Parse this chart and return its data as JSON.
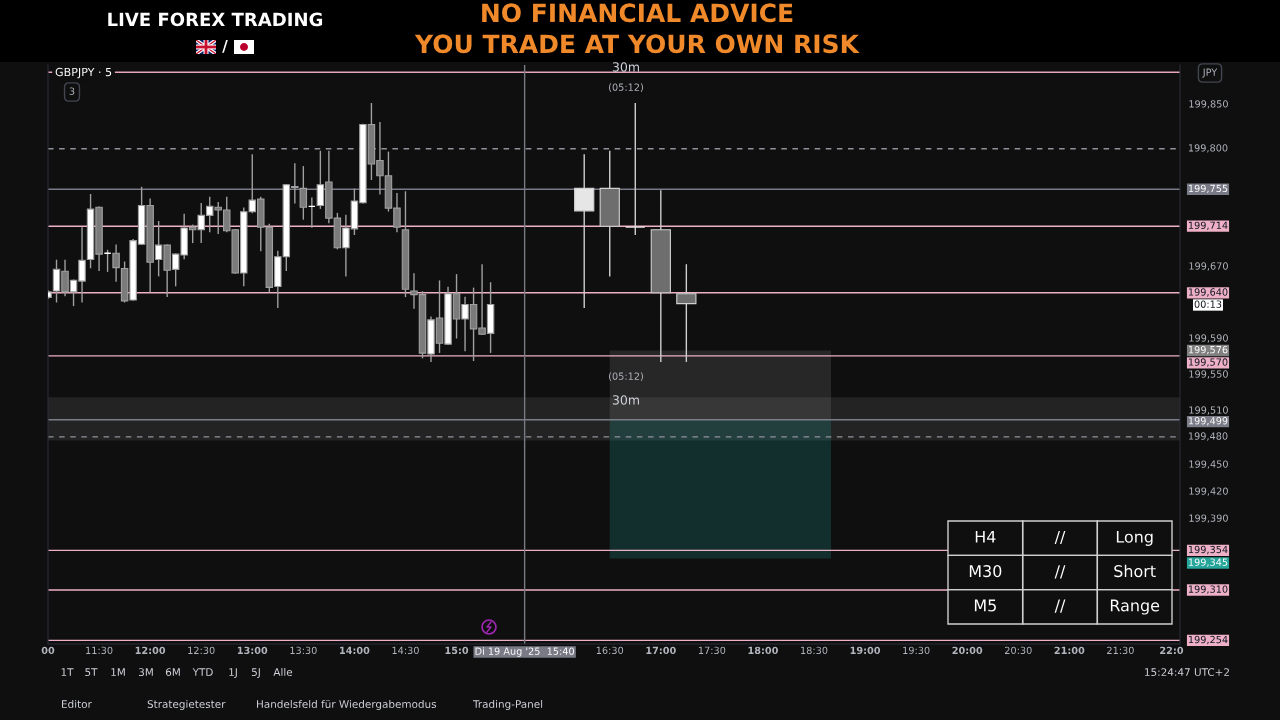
{
  "chart_data": [
    {
      "type": "candlestick",
      "title": "LIVE FOREX TRADING",
      "subtitle": "NO FINANCIAL ADVICE\nYOU TRADE AT YOUR OWN RISK",
      "ylabel": "JPY",
      "xlim": [
        "2025-08-19T11:00",
        "2025-08-19T22:05"
      ],
      "ylim": [
        199250,
        199893
      ],
      "xticks": [
        {
          "value": "2025-08-19T11:00",
          "label": "00"
        },
        {
          "value": "2025-08-19T11:30",
          "label": "11:30"
        },
        {
          "value": "2025-08-19T12:00",
          "label": "12:00"
        },
        {
          "value": "2025-08-19T12:30",
          "label": "12:30"
        },
        {
          "value": "2025-08-19T13:00",
          "label": "13:00"
        },
        {
          "value": "2025-08-19T13:30",
          "label": "13:30"
        },
        {
          "value": "2025-08-19T14:00",
          "label": "14:00"
        },
        {
          "value": "2025-08-19T14:30",
          "label": "14:30"
        },
        {
          "value": "2025-08-19T15:00",
          "label": "15:0"
        },
        {
          "value": "2025-08-19T16:30",
          "label": "16:30"
        },
        {
          "value": "2025-08-19T17:00",
          "label": "17:00"
        },
        {
          "value": "2025-08-19T17:30",
          "label": "17:30"
        },
        {
          "value": "2025-08-19T18:00",
          "label": "18:00"
        },
        {
          "value": "2025-08-19T18:30",
          "label": "18:30"
        },
        {
          "value": "2025-08-19T19:00",
          "label": "19:00"
        },
        {
          "value": "2025-08-19T19:30",
          "label": "19:30"
        },
        {
          "value": "2025-08-19T20:00",
          "label": "20:00"
        },
        {
          "value": "2025-08-19T20:30",
          "label": "20:30"
        },
        {
          "value": "2025-08-19T21:00",
          "label": "21:00"
        },
        {
          "value": "2025-08-19T21:30",
          "label": "21:30"
        },
        {
          "value": "2025-08-19T22:00",
          "label": "22:0"
        }
      ],
      "yticks": [
        {
          "value": 199850,
          "label": "199,850"
        },
        {
          "value": 199670,
          "label": "199,670"
        },
        {
          "value": 199590,
          "label": "199,590"
        },
        {
          "value": 199550,
          "label": "199,550"
        },
        {
          "value": 199510,
          "label": "199,510"
        },
        {
          "value": 199450,
          "label": "199,450"
        },
        {
          "value": 199420,
          "label": "199,420"
        },
        {
          "value": 199390,
          "label": "199,390"
        }
      ],
      "series": [
        {
          "type": "candlestick",
          "color": "#a0a0a0",
          "x": [
            "2025-08-19T11:00",
            "2025-08-19T11:05",
            "2025-08-19T11:10",
            "2025-08-19T11:15",
            "2025-08-19T11:20",
            "2025-08-19T11:25",
            "2025-08-19T11:30",
            "2025-08-19T11:35",
            "2025-08-19T11:40",
            "2025-08-19T11:45",
            "2025-08-19T11:50",
            "2025-08-19T11:55",
            "2025-08-19T12:00",
            "2025-08-19T12:05",
            "2025-08-19T12:10",
            "2025-08-19T12:15",
            "2025-08-19T12:20",
            "2025-08-19T12:25",
            "2025-08-19T12:30",
            "2025-08-19T12:35",
            "2025-08-19T12:40",
            "2025-08-19T12:45",
            "2025-08-19T12:50",
            "2025-08-19T12:55",
            "2025-08-19T13:00",
            "2025-08-19T13:05",
            "2025-08-19T13:10",
            "2025-08-19T13:15",
            "2025-08-19T13:20",
            "2025-08-19T13:25",
            "2025-08-19T13:30",
            "2025-08-19T13:35",
            "2025-08-19T13:40",
            "2025-08-19T13:45",
            "2025-08-19T13:50",
            "2025-08-19T13:55",
            "2025-08-19T14:00",
            "2025-08-19T14:05",
            "2025-08-19T14:10",
            "2025-08-19T14:15",
            "2025-08-19T14:20",
            "2025-08-19T14:25",
            "2025-08-19T14:30",
            "2025-08-19T14:35",
            "2025-08-19T14:40",
            "2025-08-19T14:45",
            "2025-08-19T14:50",
            "2025-08-19T14:55",
            "2025-08-19T15:00",
            "2025-08-19T15:05",
            "2025-08-19T15:10",
            "2025-08-19T15:15",
            "2025-08-19T15:20"
          ],
          "ohlc": [
            [
              199635,
              199642,
              199634,
              199641
            ],
            [
              199642,
              199676,
              199630,
              199666
            ],
            [
              199664,
              199676,
              199637,
              199641
            ],
            [
              199641,
              199654,
              199626,
              199654
            ],
            [
              199653,
              199712,
              199630,
              199676
            ],
            [
              199677,
              199749,
              199668,
              199733
            ],
            [
              199735,
              199735,
              199665,
              199683
            ],
            [
              199684,
              199687,
              199664,
              199684
            ],
            [
              199684,
              199693,
              199653,
              199668
            ],
            [
              199667,
              199674,
              199630,
              199631
            ],
            [
              199632,
              199699,
              199632,
              199698
            ],
            [
              199694,
              199757,
              199694,
              199737
            ],
            [
              199737,
              199744,
              199641,
              199674
            ],
            [
              199677,
              199719,
              199659,
              199693
            ],
            [
              199693,
              199693,
              199636,
              199665
            ],
            [
              199666,
              199683,
              199648,
              199683
            ],
            [
              199682,
              199727,
              199678,
              199712
            ],
            [
              199713,
              199715,
              199696,
              199710
            ],
            [
              199710,
              199739,
              199696,
              199726
            ],
            [
              199726,
              199746,
              199708,
              199736
            ],
            [
              199735,
              199740,
              199706,
              199732
            ],
            [
              199732,
              199746,
              199708,
              199709
            ],
            [
              199710,
              199710,
              199662,
              199662
            ],
            [
              199662,
              199734,
              199648,
              199730
            ],
            [
              199730,
              199793,
              199729,
              199743
            ],
            [
              199744,
              199746,
              199687,
              199713
            ],
            [
              199713,
              199716,
              199641,
              199646
            ],
            [
              199647,
              199686,
              199624,
              199680
            ],
            [
              199680,
              199760,
              199665,
              199760
            ],
            [
              199758,
              199783,
              199740,
              199757
            ],
            [
              199756,
              199780,
              199722,
              199735
            ],
            [
              199736,
              199745,
              199713,
              199736
            ],
            [
              199737,
              199797,
              199734,
              199760
            ],
            [
              199763,
              199797,
              199718,
              199723
            ],
            [
              199723,
              199728,
              199689,
              199690
            ],
            [
              199690,
              199726,
              199659,
              199712
            ],
            [
              199711,
              199755,
              199705,
              199742
            ],
            [
              199740,
              199827,
              199740,
              199827
            ],
            [
              199827,
              199850,
              199766,
              199783
            ],
            [
              199787,
              199829,
              199750,
              199770
            ],
            [
              199770,
              199796,
              199731,
              199734
            ],
            [
              199734,
              199750,
              199708,
              199713
            ],
            [
              199710,
              199752,
              199636,
              199644
            ],
            [
              199642,
              199661,
              199623,
              199638
            ],
            [
              199638,
              199641,
              199568,
              199573
            ],
            [
              199572,
              199613,
              199564,
              199610
            ],
            [
              199612,
              199653,
              199574,
              199584
            ],
            [
              199583,
              199646,
              199583,
              199639
            ],
            [
              199639,
              199660,
              199590,
              199611
            ],
            [
              199611,
              199635,
              199576,
              199627
            ],
            [
              199627,
              199645,
              199565,
              199600
            ],
            [
              199601,
              199671,
              199594,
              199594
            ],
            [
              199595,
              199651,
              199574,
              199627
            ]
          ],
          "colors": [
            "#ffffff",
            "#ffffff",
            "#7b7b7b",
            "#ffffff",
            "#ffffff",
            "#ffffff",
            "#7b7b7b",
            "#ffffff",
            "#7b7b7b",
            "#7b7b7b",
            "#ffffff",
            "#ffffff",
            "#7b7b7b",
            "#ffffff",
            "#7b7b7b",
            "#ffffff",
            "#ffffff",
            "#7b7b7b",
            "#ffffff",
            "#ffffff",
            "#7b7b7b",
            "#7b7b7b",
            "#7b7b7b",
            "#ffffff",
            "#ffffff",
            "#7b7b7b",
            "#7b7b7b",
            "#ffffff",
            "#ffffff",
            "#7b7b7b",
            "#7b7b7b",
            "#ffffff",
            "#ffffff",
            "#7b7b7b",
            "#7b7b7b",
            "#ffffff",
            "#ffffff",
            "#ffffff",
            "#7b7b7b",
            "#7b7b7b",
            "#7b7b7b",
            "#7b7b7b",
            "#7b7b7b",
            "#7b7b7b",
            "#7b7b7b",
            "#ffffff",
            "#7b7b7b",
            "#ffffff",
            "#7b7b7b",
            "#ffffff",
            "#7b7b7b",
            "#7b7b7b",
            "#ffffff"
          ]
        },
        {
          "type": "candlestick",
          "color": "#d0d0d0",
          "x": [
            "2025-08-19T16:15",
            "2025-08-19T16:30",
            "2025-08-19T16:45",
            "2025-08-19T17:00",
            "2025-08-19T17:15"
          ],
          "ohlc": [
            [
              199731,
              199793,
              199624,
              199756
            ],
            [
              199756,
              199797,
              199659,
              199714
            ],
            [
              199713,
              199850,
              199705,
              199713
            ],
            [
              199710,
              199753,
              199564,
              199640
            ],
            [
              199639,
              199671,
              199564,
              199628
            ]
          ],
          "colors": [
            "#e6e6e6",
            "#6e6e6e",
            "#e6e6e6",
            "#6e6e6e",
            "#6e6e6e"
          ]
        },
        {
          "type": "line",
          "color": "#808080",
          "x": [
            "2025-08-19T16:30",
            "2025-08-19T18:40"
          ],
          "values": [
            null,
            null
          ],
          "lower": [
            199499,
            199499
          ],
          "upper": [
            199576,
            199576
          ]
        },
        {
          "type": "line",
          "color": "#26a69a",
          "x": [
            "2025-08-19T16:30",
            "2025-08-19T18:40"
          ],
          "values": [
            null,
            null
          ],
          "lower": [
            199345,
            199345
          ],
          "upper": [
            199499,
            199499
          ]
        }
      ],
      "ref_lines": [
        {
          "axis": "y",
          "value": 199885,
          "color": "#e8a3bd"
        },
        {
          "axis": "y",
          "value": 199800,
          "label": "199,800",
          "color": "#8f929b",
          "line_style": "dashed"
        },
        {
          "axis": "y",
          "value": 199755,
          "label": "199,755",
          "color": "#787b86"
        },
        {
          "axis": "y",
          "value": 199714,
          "label": "199,714",
          "color": "#eeb0c6"
        },
        {
          "axis": "y",
          "value": 199640,
          "label": "199,640",
          "color": "#eeb0c6"
        },
        {
          "axis": "y",
          "value": 199570,
          "label": "199,570",
          "color": "#eeb0c6"
        },
        {
          "axis": "y",
          "value": 199499,
          "label": "199,499",
          "color": "#7b7e88"
        },
        {
          "axis": "y",
          "value": 199480,
          "label": "199,480",
          "color": "#8f929b",
          "line_style": "dashed"
        },
        {
          "axis": "y",
          "value": 199354,
          "label": "199,354",
          "color": "#eeb0c6"
        },
        {
          "axis": "y",
          "value": 199310,
          "label": "199,310",
          "color": "#eeb0c6"
        },
        {
          "axis": "y",
          "value": 199254,
          "label": "199,254",
          "color": "#eeb0c6"
        },
        {
          "axis": "x",
          "value": "2025-08-19T15:40",
          "label": "Di 19 Aug '25  15:40",
          "color": "#787b86"
        }
      ],
      "bands": [
        {
          "axis": "y",
          "from": 199476,
          "to": 199524,
          "color": "#232323"
        }
      ],
      "annotations": [
        "GBPJPY · 5",
        "3",
        "/",
        "30m",
        "(05:12)",
        "(05:12)",
        "30m",
        "00:13",
        "199,576",
        "199,345",
        "1T",
        "5T",
        "1M",
        "3M",
        "6M",
        "YTD",
        "1J",
        "5J",
        "Alle",
        "15:24:47 UTC+2",
        "Editor",
        "Strategietester",
        "Handelsfeld für Wiedergabemodus",
        "Trading-Panel"
      ]
    },
    {
      "type": "other",
      "annotations": [
        "H4",
        "//",
        "Long",
        "M30",
        "//",
        "Short",
        "M5",
        "//",
        "Range"
      ]
    }
  ]
}
